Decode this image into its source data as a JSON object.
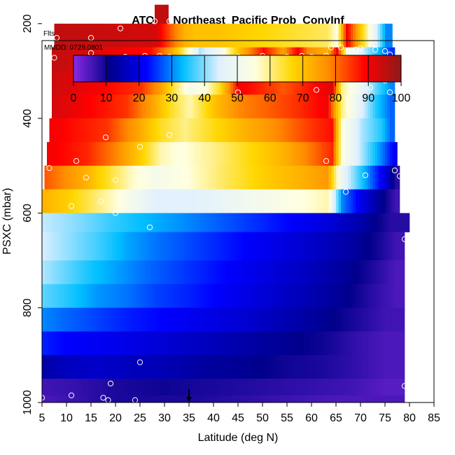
{
  "chart_data": {
    "type": "heatmap",
    "title": "ATOM1 Northeast_Pacific Prob_ConvInf",
    "annotations": [
      "Flts: 1,2",
      "MMDD: 0729,0801"
    ],
    "xlabel": "Latitude (deg N)",
    "ylabel": "PSXC (mbar)",
    "xlim": [
      5,
      85
    ],
    "ylim": [
      1000,
      0
    ],
    "x_ticks": [
      "5",
      "10",
      "15",
      "20",
      "25",
      "30",
      "35",
      "40",
      "45",
      "50",
      "55",
      "60",
      "65",
      "70",
      "75",
      "80",
      "85"
    ],
    "y_ticks": [
      "200",
      "400",
      "600",
      "800",
      "1000"
    ],
    "colorbar": {
      "range": [
        0,
        100
      ],
      "tick_labels": [
        "0",
        "10",
        "20",
        "30",
        "40",
        "50",
        "60",
        "70",
        "80",
        "90",
        "100"
      ],
      "colors": [
        "#8a2be2",
        "#00008b",
        "#0000ff",
        "#00bfff",
        "#e0f0ff",
        "#ffffe0",
        "#ffd700",
        "#ff8c00",
        "#ff0000",
        "#8b1a1a"
      ]
    },
    "layers": [
      {
        "p_top": 160,
        "p_bottom": 200,
        "lat_from": 28,
        "lat_to": 30.8,
        "segments": [
          [
            28,
            95
          ]
        ]
      },
      {
        "p_top": 200,
        "p_bottom": 250,
        "lat_from": 7.5,
        "lat_to": 76.5,
        "segments": [
          [
            7.5,
            95
          ],
          [
            28,
            93
          ],
          [
            31,
            82
          ],
          [
            34,
            72
          ],
          [
            36,
            70
          ],
          [
            40,
            70
          ],
          [
            63,
            62
          ],
          [
            65,
            55
          ],
          [
            67,
            90
          ],
          [
            69,
            75
          ],
          [
            71,
            60
          ],
          [
            73,
            45
          ],
          [
            75,
            30
          ]
        ]
      },
      {
        "p_top": 250,
        "p_bottom": 300,
        "lat_from": 7,
        "lat_to": 77,
        "segments": [
          [
            7,
            95
          ],
          [
            27,
            88
          ],
          [
            31,
            75
          ],
          [
            34,
            60
          ],
          [
            37,
            42
          ],
          [
            41,
            50
          ],
          [
            45,
            70
          ],
          [
            50,
            88
          ],
          [
            54,
            75
          ],
          [
            57,
            90
          ],
          [
            59,
            78
          ],
          [
            63,
            72
          ],
          [
            65,
            90
          ],
          [
            67,
            55
          ],
          [
            70,
            45
          ],
          [
            73,
            35
          ],
          [
            76,
            25
          ]
        ]
      },
      {
        "p_top": 300,
        "p_bottom": 350,
        "lat_from": 7,
        "lat_to": 77,
        "segments": [
          [
            7,
            94
          ],
          [
            25,
            85
          ],
          [
            29,
            75
          ],
          [
            32,
            62
          ],
          [
            35,
            52
          ],
          [
            38,
            55
          ],
          [
            41,
            65
          ],
          [
            45,
            90
          ],
          [
            54,
            82
          ],
          [
            60,
            88
          ],
          [
            64,
            92
          ],
          [
            66,
            60
          ],
          [
            70,
            48
          ],
          [
            73,
            38
          ],
          [
            76,
            30
          ]
        ]
      },
      {
        "p_top": 350,
        "p_bottom": 400,
        "lat_from": 7,
        "lat_to": 77,
        "segments": [
          [
            7,
            93
          ],
          [
            22,
            85
          ],
          [
            27,
            75
          ],
          [
            31,
            65
          ],
          [
            35,
            58
          ],
          [
            40,
            70
          ],
          [
            45,
            78
          ],
          [
            52,
            82
          ],
          [
            58,
            86
          ],
          [
            63,
            90
          ],
          [
            66,
            60
          ],
          [
            70,
            45
          ],
          [
            73,
            35
          ],
          [
            76,
            28
          ]
        ]
      },
      {
        "p_top": 400,
        "p_bottom": 450,
        "lat_from": 6.5,
        "lat_to": 77,
        "segments": [
          [
            6.5,
            90
          ],
          [
            18,
            85
          ],
          [
            24,
            75
          ],
          [
            29,
            65
          ],
          [
            34,
            60
          ],
          [
            40,
            66
          ],
          [
            46,
            72
          ],
          [
            53,
            78
          ],
          [
            59,
            84
          ],
          [
            64,
            88
          ],
          [
            66,
            55
          ],
          [
            70,
            42
          ],
          [
            74,
            35
          ],
          [
            76,
            28
          ]
        ]
      },
      {
        "p_top": 450,
        "p_bottom": 500,
        "lat_from": 6,
        "lat_to": 77.5,
        "segments": [
          [
            6,
            90
          ],
          [
            14,
            86
          ],
          [
            20,
            78
          ],
          [
            25,
            68
          ],
          [
            29,
            58
          ],
          [
            33,
            55
          ],
          [
            40,
            60
          ],
          [
            47,
            66
          ],
          [
            54,
            72
          ],
          [
            60,
            80
          ],
          [
            64,
            86
          ],
          [
            66,
            55
          ],
          [
            70,
            42
          ],
          [
            74,
            30
          ],
          [
            77,
            20
          ]
        ]
      },
      {
        "p_top": 500,
        "p_bottom": 550,
        "lat_from": 5.5,
        "lat_to": 78,
        "segments": [
          [
            5.5,
            82
          ],
          [
            9,
            78
          ],
          [
            14,
            72
          ],
          [
            18,
            65
          ],
          [
            23,
            57
          ],
          [
            28,
            52
          ],
          [
            35,
            56
          ],
          [
            42,
            62
          ],
          [
            50,
            68
          ],
          [
            57,
            72
          ],
          [
            63,
            76
          ],
          [
            66,
            48
          ],
          [
            69,
            38
          ],
          [
            72,
            28
          ],
          [
            75,
            18
          ],
          [
            77,
            8
          ]
        ]
      },
      {
        "p_top": 550,
        "p_bottom": 600,
        "lat_from": 5,
        "lat_to": 78,
        "segments": [
          [
            5,
            72
          ],
          [
            10,
            68
          ],
          [
            15,
            62
          ],
          [
            20,
            56
          ],
          [
            24,
            50
          ],
          [
            28,
            45
          ],
          [
            35,
            45
          ],
          [
            42,
            48
          ],
          [
            50,
            52
          ],
          [
            57,
            55
          ],
          [
            63,
            58
          ],
          [
            66,
            30
          ],
          [
            70,
            20
          ],
          [
            74,
            12
          ],
          [
            77,
            6
          ]
        ]
      },
      {
        "p_top": 600,
        "p_bottom": 640,
        "lat_from": 5,
        "lat_to": 80,
        "segments": [
          [
            5,
            43
          ],
          [
            12,
            40
          ],
          [
            19,
            36
          ],
          [
            26,
            33
          ],
          [
            32,
            31
          ],
          [
            40,
            28
          ],
          [
            48,
            25
          ],
          [
            56,
            22
          ],
          [
            64,
            18
          ],
          [
            70,
            14
          ],
          [
            76,
            8
          ]
        ]
      },
      {
        "p_top": 640,
        "p_bottom": 700,
        "lat_from": 5,
        "lat_to": 79,
        "segments": [
          [
            5,
            44
          ],
          [
            11,
            40
          ],
          [
            17,
            36
          ],
          [
            22,
            32
          ],
          [
            28,
            29
          ],
          [
            36,
            26
          ],
          [
            44,
            23
          ],
          [
            52,
            20
          ],
          [
            60,
            17
          ],
          [
            67,
            14
          ],
          [
            73,
            10
          ],
          [
            77,
            6
          ]
        ]
      },
      {
        "p_top": 700,
        "p_bottom": 750,
        "lat_from": 5,
        "lat_to": 79,
        "segments": [
          [
            5,
            42
          ],
          [
            10,
            38
          ],
          [
            15,
            34
          ],
          [
            21,
            31
          ],
          [
            27,
            28
          ],
          [
            35,
            25
          ],
          [
            43,
            22
          ],
          [
            51,
            19
          ],
          [
            59,
            16
          ],
          [
            66,
            13
          ],
          [
            72,
            9
          ],
          [
            77,
            5
          ]
        ]
      },
      {
        "p_top": 750,
        "p_bottom": 800,
        "lat_from": 5,
        "lat_to": 79,
        "segments": [
          [
            5,
            38
          ],
          [
            10,
            35
          ],
          [
            16,
            31
          ],
          [
            22,
            29
          ],
          [
            28,
            26
          ],
          [
            35,
            24
          ],
          [
            43,
            21
          ],
          [
            51,
            18
          ],
          [
            59,
            15
          ],
          [
            66,
            12
          ],
          [
            72,
            8
          ],
          [
            77,
            5
          ]
        ]
      },
      {
        "p_top": 800,
        "p_bottom": 850,
        "lat_from": 5,
        "lat_to": 79,
        "segments": [
          [
            5,
            30
          ],
          [
            10,
            28
          ],
          [
            16,
            26
          ],
          [
            22,
            24
          ],
          [
            30,
            22
          ],
          [
            38,
            20
          ],
          [
            46,
            18
          ],
          [
            54,
            15
          ],
          [
            62,
            12
          ],
          [
            69,
            9
          ],
          [
            75,
            6
          ]
        ]
      },
      {
        "p_top": 850,
        "p_bottom": 900,
        "lat_from": 5,
        "lat_to": 79,
        "segments": [
          [
            5,
            24
          ],
          [
            10,
            22
          ],
          [
            16,
            21
          ],
          [
            22,
            20
          ],
          [
            30,
            18
          ],
          [
            38,
            16
          ],
          [
            46,
            14
          ],
          [
            54,
            12
          ],
          [
            62,
            10
          ],
          [
            69,
            7
          ],
          [
            75,
            5
          ]
        ]
      },
      {
        "p_top": 900,
        "p_bottom": 950,
        "lat_from": 5,
        "lat_to": 79,
        "segments": [
          [
            5,
            14
          ],
          [
            10,
            16
          ],
          [
            16,
            17
          ],
          [
            22,
            16
          ],
          [
            30,
            15
          ],
          [
            38,
            13
          ],
          [
            46,
            12
          ],
          [
            54,
            10
          ],
          [
            62,
            9
          ],
          [
            69,
            7
          ],
          [
            75,
            5
          ]
        ]
      },
      {
        "p_top": 950,
        "p_bottom": 985,
        "lat_from": 5,
        "lat_to": 79,
        "segments": [
          [
            5,
            6
          ],
          [
            12,
            7
          ],
          [
            20,
            9
          ],
          [
            30,
            10
          ],
          [
            40,
            9
          ],
          [
            50,
            8
          ],
          [
            60,
            7
          ],
          [
            68,
            6
          ],
          [
            75,
            4
          ]
        ]
      },
      {
        "p_top": 985,
        "p_bottom": 1000,
        "lat_from": 5,
        "lat_to": 79,
        "segments": [
          [
            5,
            5
          ],
          [
            20,
            9
          ],
          [
            35,
            9
          ],
          [
            50,
            7
          ],
          [
            65,
            5
          ]
        ]
      }
    ],
    "points": [
      [
        8,
        230
      ],
      [
        15,
        230
      ],
      [
        21,
        210
      ],
      [
        28,
        195
      ],
      [
        31,
        195
      ],
      [
        22,
        270
      ],
      [
        26,
        268
      ],
      [
        29,
        268
      ],
      [
        31,
        270
      ],
      [
        34,
        272
      ],
      [
        38,
        272
      ],
      [
        41,
        275
      ],
      [
        45,
        270
      ],
      [
        50,
        268
      ],
      [
        55,
        270
      ],
      [
        58,
        268
      ],
      [
        63,
        268
      ],
      [
        66,
        250
      ],
      [
        70,
        252
      ],
      [
        73,
        255
      ],
      [
        75,
        258
      ],
      [
        76,
        265
      ],
      [
        69,
        255
      ],
      [
        60,
        270
      ],
      [
        64,
        250
      ],
      [
        7.5,
        272
      ],
      [
        15,
        262
      ],
      [
        61,
        340
      ],
      [
        45,
        345
      ],
      [
        75,
        320
      ],
      [
        76,
        345
      ],
      [
        72,
        335
      ],
      [
        31,
        435
      ],
      [
        12,
        490
      ],
      [
        25,
        460
      ],
      [
        18,
        440
      ],
      [
        6.5,
        505
      ],
      [
        14,
        525
      ],
      [
        20,
        530
      ],
      [
        63,
        490
      ],
      [
        71,
        520
      ],
      [
        77,
        510
      ],
      [
        78,
        522
      ],
      [
        67,
        555
      ],
      [
        20,
        600
      ],
      [
        27,
        630
      ],
      [
        17,
        575
      ],
      [
        11,
        585
      ],
      [
        79,
        655
      ],
      [
        25,
        915
      ],
      [
        19,
        960
      ],
      [
        11,
        985
      ],
      [
        5,
        990
      ],
      [
        17.5,
        990
      ],
      [
        18.5,
        995
      ],
      [
        79,
        965
      ],
      [
        24,
        995
      ]
    ],
    "arrow_marker_lat": 35
  }
}
